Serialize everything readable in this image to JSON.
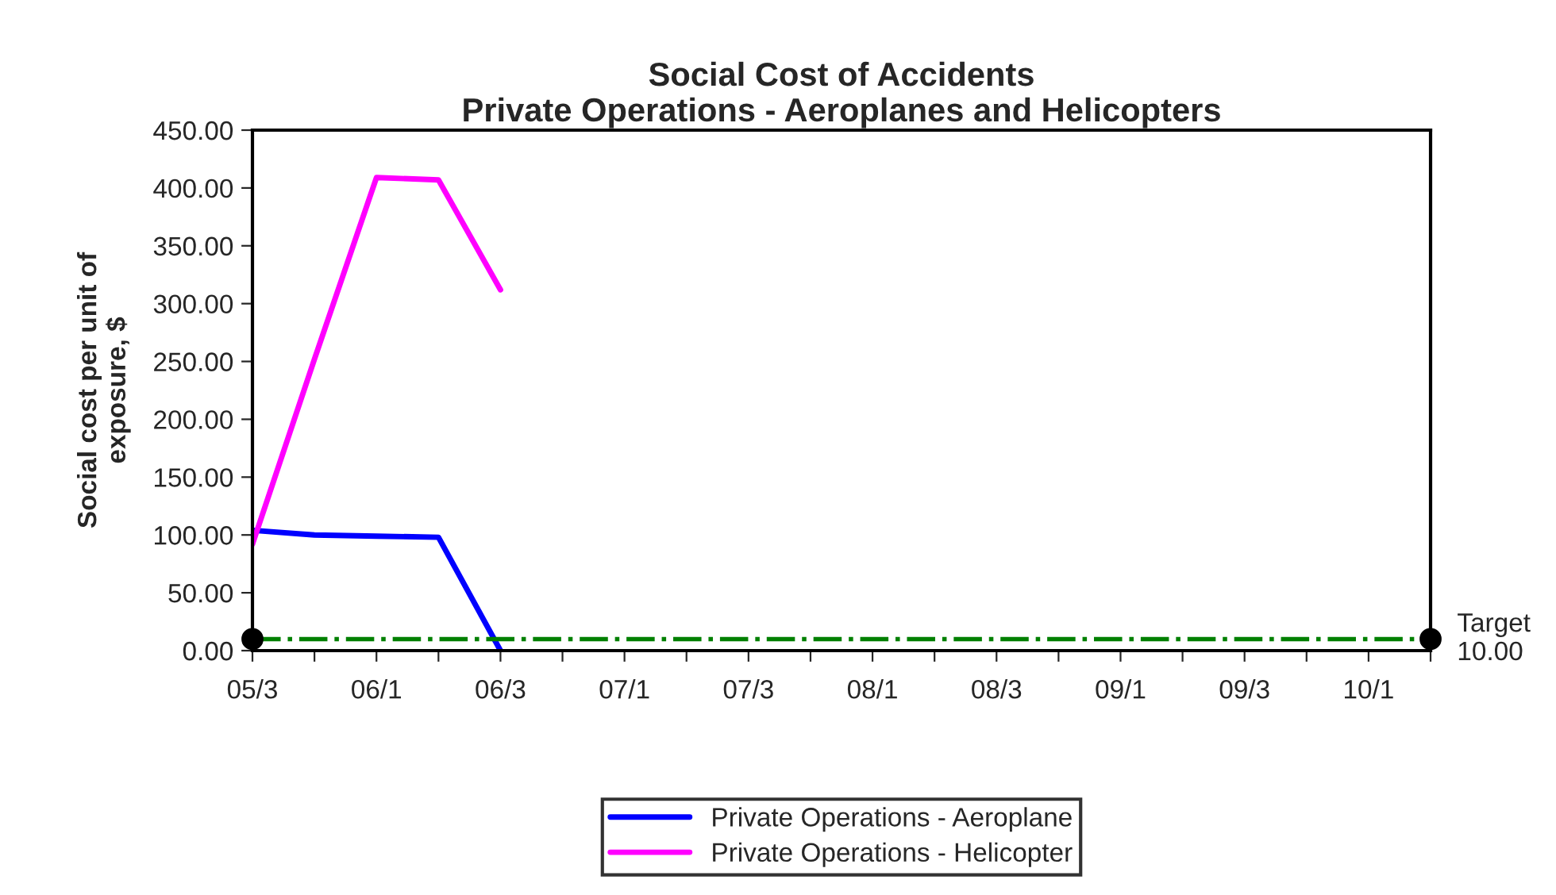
{
  "chart_data": {
    "type": "line",
    "title": "Social Cost of Accidents\nPrivate Operations - Aeroplanes and Helicopters",
    "ylabel": "Social cost per unit of\nexposure, $",
    "categories": [
      "05/3",
      null,
      "06/1",
      null,
      "06/3",
      null,
      "07/1",
      null,
      "07/3",
      null,
      "08/1",
      null,
      "08/3",
      null,
      "09/1",
      null,
      "09/3",
      null,
      "10/1",
      null
    ],
    "series": [
      {
        "name": "Private Operations - Aeroplane",
        "color": "#0000ff",
        "values": [
          104,
          100,
          99,
          98,
          0,
          null,
          null,
          null,
          null,
          null,
          null,
          null,
          null,
          null,
          null,
          null,
          null,
          null,
          null,
          null
        ]
      },
      {
        "name": "Private Operations - Helicopter",
        "color": "#ff00ff",
        "values": [
          92,
          252,
          409,
          407,
          312,
          null,
          null,
          null,
          null,
          null,
          null,
          null,
          null,
          null,
          null,
          null,
          null,
          null,
          null,
          null
        ]
      },
      {
        "type": "scatter",
        "marker": "circle",
        "color": "#000000",
        "values": [
          10,
          null,
          null,
          null,
          null,
          null,
          null,
          null,
          null,
          null,
          null,
          null,
          null,
          null,
          null,
          null,
          null,
          null,
          null,
          10
        ]
      }
    ],
    "ylim": [
      0,
      450
    ],
    "yticks": [
      {
        "value": 0,
        "label": "0.00"
      },
      {
        "value": 50,
        "label": "50.00"
      },
      {
        "value": 100,
        "label": "100.00"
      },
      {
        "value": 150,
        "label": "150.00"
      },
      {
        "value": 200,
        "label": "200.00"
      },
      {
        "value": 250,
        "label": "250.00"
      },
      {
        "value": 300,
        "label": "300.00"
      },
      {
        "value": 350,
        "label": "350.00"
      },
      {
        "value": 400,
        "label": "400.00"
      },
      {
        "value": 450,
        "label": "450.00"
      }
    ],
    "ref_lines": [
      {
        "axis": "y",
        "value": 10,
        "label": "Target\n10.00",
        "color": "#008000",
        "line_style": "dashdot"
      }
    ],
    "grid": false,
    "legend": "bottom",
    "marker": "none",
    "line_style": "solid"
  }
}
